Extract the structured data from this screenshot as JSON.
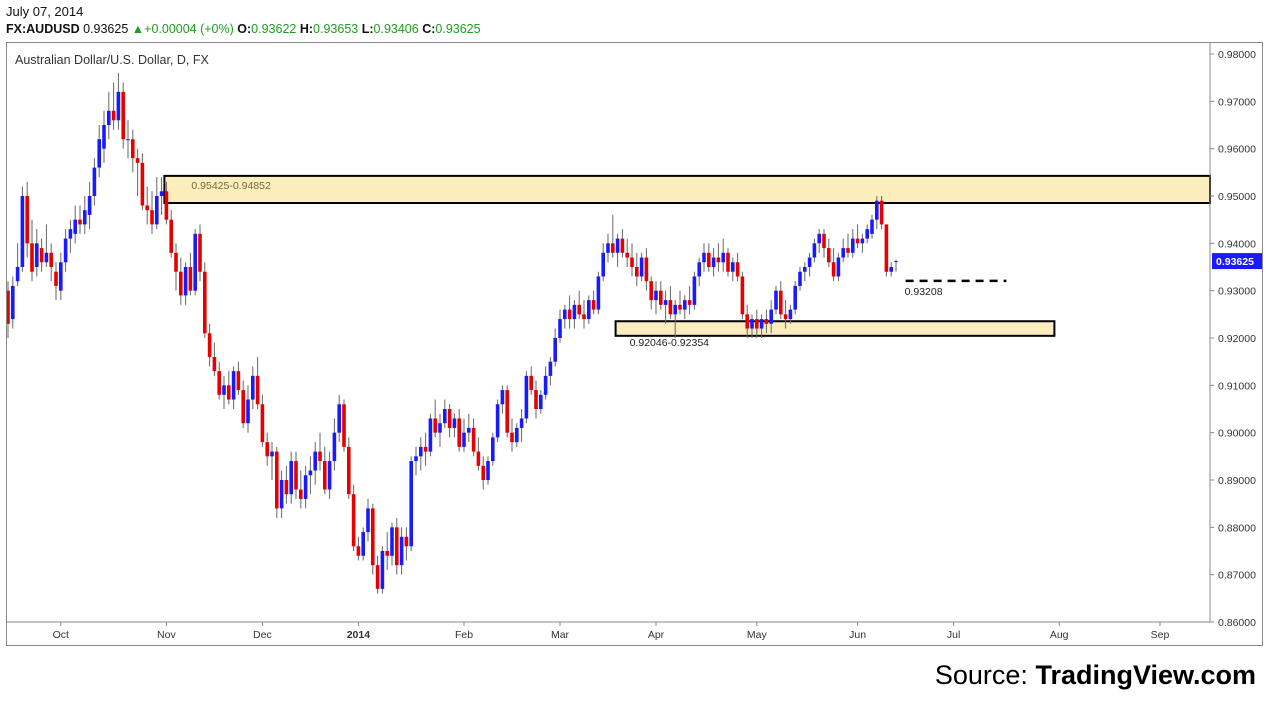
{
  "header": {
    "date": "July 07, 2014",
    "symbol": "FX:AUDUSD",
    "last": "0.93625",
    "change": "+0.00004 (+0%)",
    "open_label": "O:",
    "open": "0.93622",
    "high_label": "H:",
    "high": "0.93653",
    "low_label": "L:",
    "low": "0.93406",
    "close_label": "C:",
    "close": "0.93625"
  },
  "colors": {
    "up": "#1a1aff",
    "down": "#e60000",
    "zone_fill": "#fcedbf",
    "zone_border": "#000000",
    "price_tag": "#1a1aff"
  },
  "chart_data": {
    "type": "candlestick",
    "title": "Australian Dollar/U.S. Dollar, D, FX",
    "y_axis_position": "right",
    "ylim": [
      0.86,
      0.98
    ],
    "y_ticks": [
      "0.98000",
      "0.97000",
      "0.96000",
      "0.95000",
      "0.94000",
      "0.93000",
      "0.92000",
      "0.91000",
      "0.90000",
      "0.89000",
      "0.88000",
      "0.87000",
      "0.86000"
    ],
    "x_ticks": [
      {
        "label": "Oct",
        "index": 11
      },
      {
        "label": "Nov",
        "index": 33
      },
      {
        "label": "Dec",
        "index": 53
      },
      {
        "label": "2014",
        "index": 73,
        "bold": true
      },
      {
        "label": "Feb",
        "index": 95
      },
      {
        "label": "Mar",
        "index": 115
      },
      {
        "label": "Apr",
        "index": 135
      },
      {
        "label": "May",
        "index": 156
      },
      {
        "label": "Jun",
        "index": 177
      },
      {
        "label": "Jul",
        "index": 197
      },
      {
        "label": "Aug",
        "index": 219
      },
      {
        "label": "Sep",
        "index": 240
      }
    ],
    "last_price": "0.93625",
    "zones": [
      {
        "label": "0.95425-0.94852",
        "top": 0.95425,
        "bottom": 0.94852,
        "from_index": 33,
        "to_index": 251
      },
      {
        "label": "0.92046-0.92354",
        "top": 0.92354,
        "bottom": 0.92046,
        "from_index": 127,
        "to_index": 218
      }
    ],
    "support": {
      "label": "0.93208",
      "value": 0.93208,
      "from_index": 187,
      "to_index": 208
    },
    "candles": [
      [
        0.93,
        0.932,
        0.92,
        0.923
      ],
      [
        0.924,
        0.933,
        0.922,
        0.931
      ],
      [
        0.932,
        0.94,
        0.931,
        0.935
      ],
      [
        0.935,
        0.952,
        0.934,
        0.95
      ],
      [
        0.95,
        0.953,
        0.937,
        0.94
      ],
      [
        0.94,
        0.945,
        0.932,
        0.934
      ],
      [
        0.935,
        0.943,
        0.933,
        0.94
      ],
      [
        0.939,
        0.941,
        0.934,
        0.936
      ],
      [
        0.936,
        0.944,
        0.935,
        0.938
      ],
      [
        0.938,
        0.94,
        0.932,
        0.935
      ],
      [
        0.934,
        0.936,
        0.928,
        0.931
      ],
      [
        0.93,
        0.938,
        0.928,
        0.936
      ],
      [
        0.936,
        0.943,
        0.934,
        0.941
      ],
      [
        0.941,
        0.945,
        0.938,
        0.943
      ],
      [
        0.942,
        0.948,
        0.94,
        0.945
      ],
      [
        0.945,
        0.948,
        0.942,
        0.944
      ],
      [
        0.944,
        0.95,
        0.942,
        0.947
      ],
      [
        0.946,
        0.953,
        0.943,
        0.95
      ],
      [
        0.95,
        0.958,
        0.948,
        0.956
      ],
      [
        0.956,
        0.965,
        0.954,
        0.962
      ],
      [
        0.96,
        0.968,
        0.957,
        0.965
      ],
      [
        0.965,
        0.972,
        0.962,
        0.968
      ],
      [
        0.968,
        0.974,
        0.964,
        0.966
      ],
      [
        0.966,
        0.976,
        0.964,
        0.972
      ],
      [
        0.972,
        0.974,
        0.96,
        0.962
      ],
      [
        0.962,
        0.966,
        0.958,
        0.962
      ],
      [
        0.962,
        0.964,
        0.955,
        0.958
      ],
      [
        0.958,
        0.96,
        0.95,
        0.957
      ],
      [
        0.957,
        0.959,
        0.947,
        0.948
      ],
      [
        0.948,
        0.952,
        0.944,
        0.947
      ],
      [
        0.947,
        0.951,
        0.942,
        0.944
      ],
      [
        0.944,
        0.954,
        0.943,
        0.95
      ],
      [
        0.95,
        0.954,
        0.946,
        0.951
      ],
      [
        0.951,
        0.953,
        0.944,
        0.945
      ],
      [
        0.945,
        0.947,
        0.937,
        0.938
      ],
      [
        0.938,
        0.94,
        0.93,
        0.934
      ],
      [
        0.934,
        0.937,
        0.927,
        0.929
      ],
      [
        0.929,
        0.936,
        0.927,
        0.935
      ],
      [
        0.935,
        0.938,
        0.929,
        0.93
      ],
      [
        0.93,
        0.943,
        0.929,
        0.942
      ],
      [
        0.942,
        0.944,
        0.932,
        0.934
      ],
      [
        0.934,
        0.936,
        0.92,
        0.921
      ],
      [
        0.921,
        0.923,
        0.914,
        0.916
      ],
      [
        0.916,
        0.919,
        0.912,
        0.913
      ],
      [
        0.913,
        0.915,
        0.907,
        0.908
      ],
      [
        0.908,
        0.912,
        0.905,
        0.91
      ],
      [
        0.91,
        0.913,
        0.906,
        0.907
      ],
      [
        0.907,
        0.914,
        0.905,
        0.913
      ],
      [
        0.913,
        0.915,
        0.908,
        0.909
      ],
      [
        0.909,
        0.911,
        0.901,
        0.902
      ],
      [
        0.902,
        0.91,
        0.9,
        0.907
      ],
      [
        0.907,
        0.914,
        0.905,
        0.912
      ],
      [
        0.912,
        0.916,
        0.905,
        0.906
      ],
      [
        0.906,
        0.908,
        0.897,
        0.898
      ],
      [
        0.898,
        0.9,
        0.893,
        0.895
      ],
      [
        0.895,
        0.898,
        0.89,
        0.896
      ],
      [
        0.896,
        0.897,
        0.882,
        0.884
      ],
      [
        0.884,
        0.892,
        0.882,
        0.89
      ],
      [
        0.89,
        0.893,
        0.885,
        0.887
      ],
      [
        0.887,
        0.896,
        0.885,
        0.894
      ],
      [
        0.894,
        0.896,
        0.886,
        0.888
      ],
      [
        0.888,
        0.892,
        0.884,
        0.886
      ],
      [
        0.886,
        0.893,
        0.884,
        0.891
      ],
      [
        0.891,
        0.895,
        0.887,
        0.892
      ],
      [
        0.892,
        0.898,
        0.889,
        0.896
      ],
      [
        0.896,
        0.9,
        0.892,
        0.894
      ],
      [
        0.894,
        0.897,
        0.887,
        0.888
      ],
      [
        0.888,
        0.896,
        0.886,
        0.894
      ],
      [
        0.894,
        0.903,
        0.892,
        0.9
      ],
      [
        0.9,
        0.908,
        0.898,
        0.906
      ],
      [
        0.906,
        0.907,
        0.896,
        0.897
      ],
      [
        0.897,
        0.899,
        0.886,
        0.887
      ],
      [
        0.887,
        0.889,
        0.875,
        0.876
      ],
      [
        0.876,
        0.878,
        0.873,
        0.874
      ],
      [
        0.874,
        0.88,
        0.873,
        0.879
      ],
      [
        0.879,
        0.886,
        0.877,
        0.884
      ],
      [
        0.884,
        0.885,
        0.87,
        0.872
      ],
      [
        0.872,
        0.874,
        0.866,
        0.867
      ],
      [
        0.867,
        0.876,
        0.866,
        0.875
      ],
      [
        0.875,
        0.879,
        0.871,
        0.874
      ],
      [
        0.874,
        0.881,
        0.872,
        0.88
      ],
      [
        0.88,
        0.882,
        0.87,
        0.872
      ],
      [
        0.872,
        0.88,
        0.87,
        0.878
      ],
      [
        0.878,
        0.88,
        0.873,
        0.876
      ],
      [
        0.876,
        0.895,
        0.875,
        0.894
      ],
      [
        0.894,
        0.897,
        0.891,
        0.895
      ],
      [
        0.895,
        0.899,
        0.892,
        0.897
      ],
      [
        0.897,
        0.9,
        0.893,
        0.896
      ],
      [
        0.896,
        0.904,
        0.895,
        0.903
      ],
      [
        0.903,
        0.907,
        0.899,
        0.9
      ],
      [
        0.9,
        0.904,
        0.897,
        0.902
      ],
      [
        0.902,
        0.907,
        0.901,
        0.905
      ],
      [
        0.905,
        0.906,
        0.899,
        0.901
      ],
      [
        0.901,
        0.904,
        0.899,
        0.903
      ],
      [
        0.903,
        0.905,
        0.896,
        0.897
      ],
      [
        0.897,
        0.903,
        0.896,
        0.9
      ],
      [
        0.9,
        0.904,
        0.898,
        0.901
      ],
      [
        0.901,
        0.903,
        0.895,
        0.896
      ],
      [
        0.896,
        0.899,
        0.892,
        0.893
      ],
      [
        0.893,
        0.895,
        0.888,
        0.89
      ],
      [
        0.89,
        0.895,
        0.889,
        0.894
      ],
      [
        0.894,
        0.9,
        0.893,
        0.899
      ],
      [
        0.899,
        0.907,
        0.898,
        0.906
      ],
      [
        0.906,
        0.91,
        0.904,
        0.909
      ],
      [
        0.909,
        0.91,
        0.899,
        0.9
      ],
      [
        0.9,
        0.903,
        0.896,
        0.898
      ],
      [
        0.898,
        0.902,
        0.897,
        0.901
      ],
      [
        0.901,
        0.905,
        0.898,
        0.903
      ],
      [
        0.903,
        0.913,
        0.902,
        0.912
      ],
      [
        0.912,
        0.914,
        0.908,
        0.909
      ],
      [
        0.909,
        0.911,
        0.903,
        0.905
      ],
      [
        0.905,
        0.909,
        0.904,
        0.908
      ],
      [
        0.908,
        0.914,
        0.907,
        0.912
      ],
      [
        0.912,
        0.916,
        0.91,
        0.915
      ],
      [
        0.915,
        0.922,
        0.914,
        0.92
      ],
      [
        0.92,
        0.926,
        0.919,
        0.924
      ],
      [
        0.924,
        0.927,
        0.922,
        0.926
      ],
      [
        0.926,
        0.929,
        0.922,
        0.924
      ],
      [
        0.924,
        0.928,
        0.922,
        0.927
      ],
      [
        0.927,
        0.93,
        0.924,
        0.925
      ],
      [
        0.925,
        0.928,
        0.922,
        0.924
      ],
      [
        0.924,
        0.929,
        0.923,
        0.928
      ],
      [
        0.928,
        0.93,
        0.925,
        0.926
      ],
      [
        0.926,
        0.934,
        0.925,
        0.933
      ],
      [
        0.933,
        0.94,
        0.932,
        0.938
      ],
      [
        0.938,
        0.942,
        0.936,
        0.94
      ],
      [
        0.94,
        0.946,
        0.937,
        0.938
      ],
      [
        0.938,
        0.942,
        0.935,
        0.941
      ],
      [
        0.941,
        0.943,
        0.937,
        0.938
      ],
      [
        0.938,
        0.941,
        0.935,
        0.937
      ],
      [
        0.937,
        0.94,
        0.933,
        0.935
      ],
      [
        0.935,
        0.938,
        0.931,
        0.933
      ],
      [
        0.933,
        0.938,
        0.932,
        0.937
      ],
      [
        0.937,
        0.939,
        0.93,
        0.932
      ],
      [
        0.932,
        0.933,
        0.926,
        0.928
      ],
      [
        0.928,
        0.932,
        0.925,
        0.93
      ],
      [
        0.93,
        0.932,
        0.926,
        0.927
      ],
      [
        0.927,
        0.93,
        0.923,
        0.928
      ],
      [
        0.928,
        0.931,
        0.924,
        0.925
      ],
      [
        0.925,
        0.928,
        0.92,
        0.927
      ],
      [
        0.927,
        0.93,
        0.925,
        0.926
      ],
      [
        0.926,
        0.929,
        0.924,
        0.928
      ],
      [
        0.928,
        0.931,
        0.925,
        0.927
      ],
      [
        0.927,
        0.934,
        0.926,
        0.933
      ],
      [
        0.933,
        0.937,
        0.931,
        0.936
      ],
      [
        0.936,
        0.94,
        0.934,
        0.938
      ],
      [
        0.938,
        0.94,
        0.934,
        0.935
      ],
      [
        0.935,
        0.939,
        0.933,
        0.937
      ],
      [
        0.937,
        0.94,
        0.934,
        0.936
      ],
      [
        0.936,
        0.941,
        0.934,
        0.938
      ],
      [
        0.938,
        0.939,
        0.933,
        0.934
      ],
      [
        0.934,
        0.937,
        0.932,
        0.936
      ],
      [
        0.936,
        0.938,
        0.932,
        0.933
      ],
      [
        0.933,
        0.934,
        0.924,
        0.925
      ],
      [
        0.925,
        0.927,
        0.92,
        0.922
      ],
      [
        0.922,
        0.925,
        0.92,
        0.924
      ],
      [
        0.924,
        0.926,
        0.92,
        0.922
      ],
      [
        0.922,
        0.925,
        0.92,
        0.924
      ],
      [
        0.924,
        0.926,
        0.921,
        0.923
      ],
      [
        0.923,
        0.928,
        0.921,
        0.926
      ],
      [
        0.926,
        0.931,
        0.925,
        0.93
      ],
      [
        0.93,
        0.932,
        0.924,
        0.925
      ],
      [
        0.925,
        0.928,
        0.922,
        0.924
      ],
      [
        0.924,
        0.927,
        0.923,
        0.926
      ],
      [
        0.926,
        0.932,
        0.925,
        0.931
      ],
      [
        0.931,
        0.935,
        0.93,
        0.934
      ],
      [
        0.934,
        0.936,
        0.932,
        0.935
      ],
      [
        0.935,
        0.938,
        0.933,
        0.937
      ],
      [
        0.937,
        0.941,
        0.936,
        0.94
      ],
      [
        0.94,
        0.943,
        0.938,
        0.942
      ],
      [
        0.942,
        0.943,
        0.937,
        0.939
      ],
      [
        0.939,
        0.941,
        0.935,
        0.936
      ],
      [
        0.936,
        0.939,
        0.932,
        0.933
      ],
      [
        0.933,
        0.938,
        0.932,
        0.937
      ],
      [
        0.937,
        0.941,
        0.936,
        0.939
      ],
      [
        0.939,
        0.942,
        0.937,
        0.938
      ],
      [
        0.938,
        0.943,
        0.937,
        0.941
      ],
      [
        0.941,
        0.944,
        0.939,
        0.94
      ],
      [
        0.94,
        0.942,
        0.938,
        0.941
      ],
      [
        0.941,
        0.944,
        0.94,
        0.943
      ],
      [
        0.942,
        0.946,
        0.941,
        0.945
      ],
      [
        0.945,
        0.95,
        0.943,
        0.949
      ],
      [
        0.949,
        0.95,
        0.943,
        0.944
      ],
      [
        0.944,
        0.944,
        0.933,
        0.934
      ],
      [
        0.934,
        0.936,
        0.933,
        0.935
      ],
      [
        0.93622,
        0.93653,
        0.93406,
        0.93625
      ]
    ]
  },
  "footer": {
    "source_label": "Source:",
    "source_name": "TradingView.com"
  }
}
